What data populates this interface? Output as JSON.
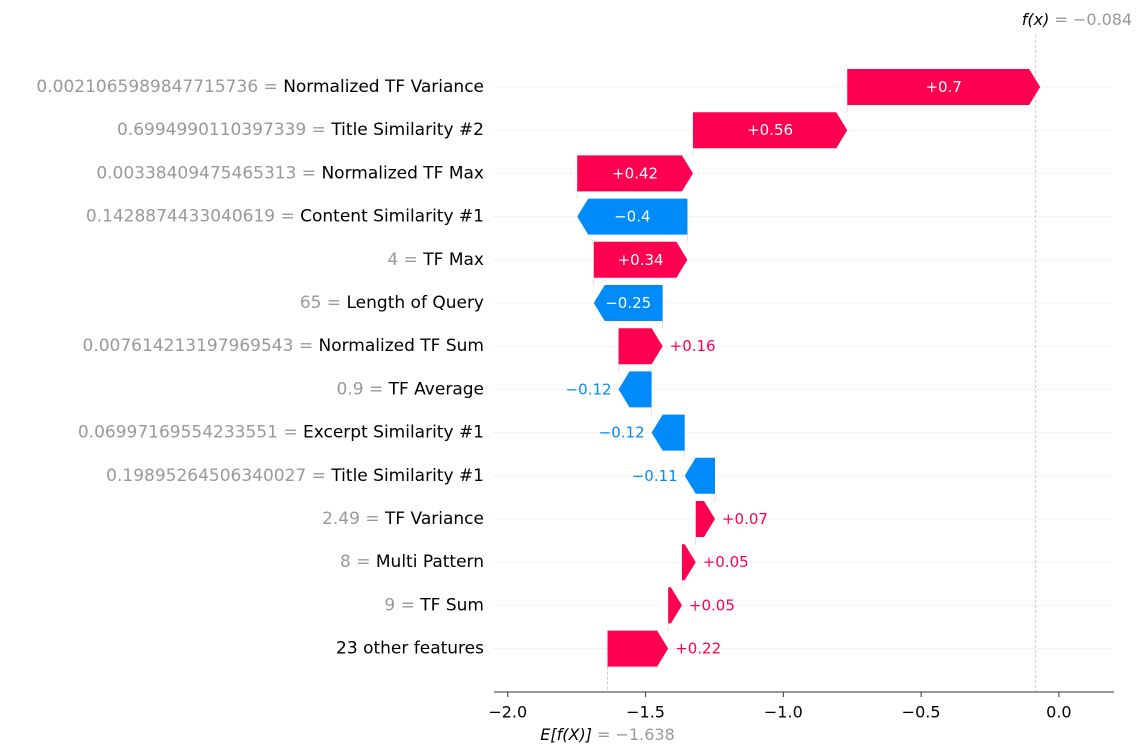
{
  "chart_data": {
    "type": "waterfall",
    "title": "",
    "output": {
      "label": "f(x)",
      "value_text": "−0.084",
      "value": -0.084
    },
    "base": {
      "label": "E[f(X)]",
      "value_text": "−1.638",
      "value": -1.638
    },
    "xlim": [
      -2.05,
      0.2
    ],
    "xticks": [
      {
        "value": -2.0,
        "label": "−2.0"
      },
      {
        "value": -1.5,
        "label": "−1.5"
      },
      {
        "value": -1.0,
        "label": "−1.0"
      },
      {
        "value": -0.5,
        "label": "−0.5"
      },
      {
        "value": 0.0,
        "label": "0.0"
      }
    ],
    "colors": {
      "positive": "#ff0051",
      "negative": "#008bfb",
      "value_text": "#999999",
      "feature_text": "#000000"
    },
    "features": [
      {
        "value": "0.0021065989847715736",
        "name": "Normalized TF Variance",
        "contribution": 0.7,
        "label": "+0.7"
      },
      {
        "value": "0.6994990110397339",
        "name": "Title Similarity #2",
        "contribution": 0.56,
        "label": "+0.56"
      },
      {
        "value": "0.00338409475465313",
        "name": "Normalized TF Max",
        "contribution": 0.42,
        "label": "+0.42"
      },
      {
        "value": "0.1428874433040619",
        "name": "Content Similarity #1",
        "contribution": -0.4,
        "label": "−0.4"
      },
      {
        "value": "4",
        "name": "TF Max",
        "contribution": 0.34,
        "label": "+0.34"
      },
      {
        "value": "65",
        "name": "Length of Query",
        "contribution": -0.25,
        "label": "−0.25"
      },
      {
        "value": "0.007614213197969543",
        "name": "Normalized TF Sum",
        "contribution": 0.16,
        "label": "+0.16"
      },
      {
        "value": "0.9",
        "name": "TF Average",
        "contribution": -0.12,
        "label": "−0.12"
      },
      {
        "value": "0.06997169554233551",
        "name": "Excerpt Similarity #1",
        "contribution": -0.12,
        "label": "−0.12"
      },
      {
        "value": "0.19895264506340027",
        "name": "Title Similarity #1",
        "contribution": -0.11,
        "label": "−0.11"
      },
      {
        "value": "2.49",
        "name": "TF Variance",
        "contribution": 0.07,
        "label": "+0.07"
      },
      {
        "value": "8",
        "name": "Multi Pattern",
        "contribution": 0.05,
        "label": "+0.05"
      },
      {
        "value": "9",
        "name": "TF Sum",
        "contribution": 0.05,
        "label": "+0.05"
      },
      {
        "value": "",
        "name": "23 other features",
        "contribution": 0.22,
        "label": "+0.22"
      }
    ]
  }
}
